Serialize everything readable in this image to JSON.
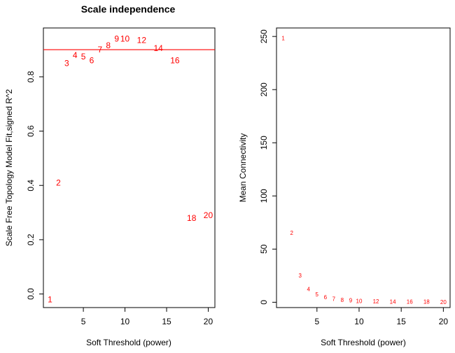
{
  "chart_data": [
    {
      "type": "scatter",
      "title": "Scale independence",
      "xlabel": "Soft Threshold (power)",
      "ylabel": "Scale Free Topology Model Fit,signed R^2",
      "xlim": [
        0.2,
        20.8
      ],
      "ylim": [
        -0.05,
        0.98
      ],
      "x_ticks": [
        5,
        10,
        15,
        20
      ],
      "y_ticks": [
        0.0,
        0.2,
        0.4,
        0.6,
        0.8
      ],
      "y_tick_labels": [
        "0.0",
        "0.2",
        "0.4",
        "0.6",
        "0.8"
      ],
      "point_labels": [
        "1",
        "2",
        "3",
        "4",
        "5",
        "6",
        "7",
        "8",
        "9",
        "10",
        "12",
        "14",
        "16",
        "18",
        "20"
      ],
      "x": [
        1,
        2,
        3,
        4,
        5,
        6,
        7,
        8,
        9,
        10,
        12,
        14,
        16,
        18,
        20
      ],
      "y": [
        -0.02,
        0.41,
        0.85,
        0.88,
        0.875,
        0.86,
        0.9,
        0.915,
        0.94,
        0.94,
        0.935,
        0.905,
        0.86,
        0.28,
        0.29
      ],
      "hline": 0.9,
      "label_color": "#ff0000",
      "label_font_size": 12
    },
    {
      "type": "scatter",
      "title": "",
      "xlabel": "Soft Threshold (power)",
      "ylabel": "Mean Connectivity",
      "xlim": [
        0.2,
        20.8
      ],
      "ylim": [
        -5,
        258
      ],
      "x_ticks": [
        5,
        10,
        15,
        20
      ],
      "y_ticks": [
        0,
        50,
        100,
        150,
        200,
        250
      ],
      "y_tick_labels": [
        "0",
        "50",
        "100",
        "150",
        "200",
        "250"
      ],
      "point_labels": [
        "1",
        "2",
        "3",
        "4",
        "5",
        "6",
        "7",
        "8",
        "9",
        "10",
        "12",
        "14",
        "16",
        "18",
        "20"
      ],
      "x": [
        1,
        2,
        3,
        4,
        5,
        6,
        7,
        8,
        9,
        10,
        12,
        14,
        16,
        18,
        20
      ],
      "y": [
        248,
        65,
        25,
        12,
        7,
        4.5,
        3,
        2,
        1.5,
        1,
        0.5,
        0.3,
        0.2,
        0.1,
        0.05
      ],
      "hline": null,
      "label_color": "#ff0000",
      "label_font_size": 8
    }
  ]
}
